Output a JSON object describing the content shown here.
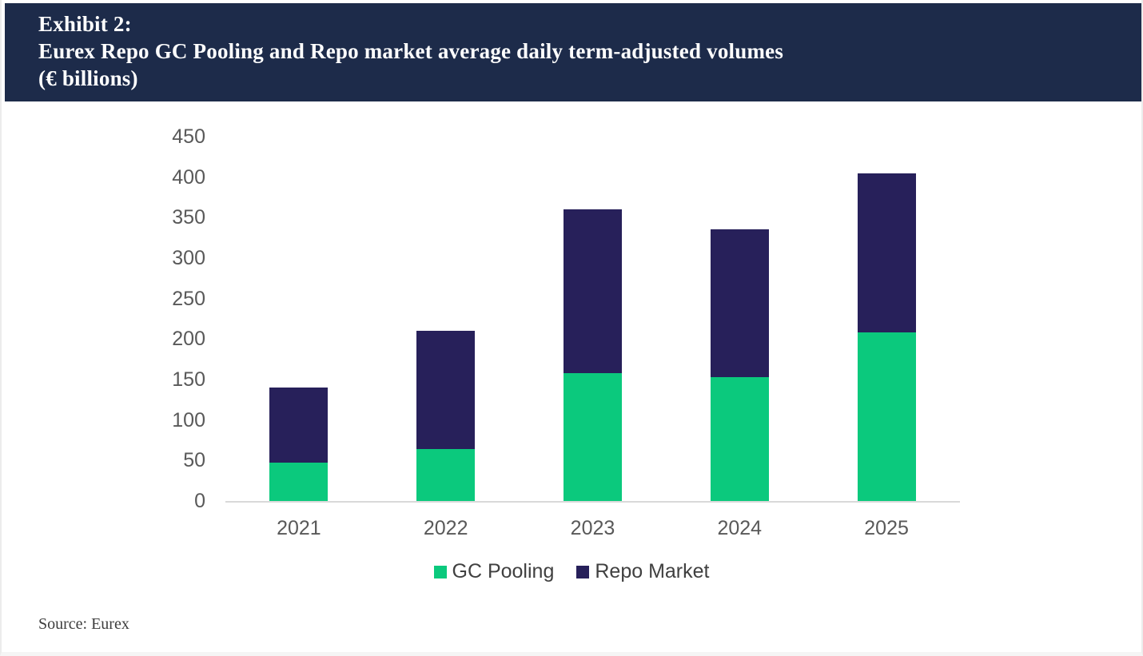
{
  "page": {
    "header": {
      "exhibit_label": "Exhibit 2:",
      "title": "Eurex Repo GC Pooling and Repo market average daily term-adjusted volumes",
      "units": "(€ billions)"
    },
    "source": "Source: Eurex"
  },
  "colors": {
    "header_bg": "#1d2b4a",
    "gc_pooling_green": "#0bc97d",
    "repo_market_navy": "#27205a",
    "axis_line": "#d9d9d9",
    "tick_text": "#595959",
    "legend_text": "#404040"
  },
  "chart_data": {
    "type": "bar",
    "stacked": true,
    "title": "Eurex Repo GC Pooling and Repo market average daily term-adjusted volumes (€ billions)",
    "categories": [
      "2021",
      "2022",
      "2023",
      "2024",
      "2025"
    ],
    "series": [
      {
        "name": "GC Pooling",
        "color": "#0bc97d",
        "values": [
          47,
          64,
          158,
          153,
          208
        ]
      },
      {
        "name": "Repo Market",
        "color": "#27205a",
        "values": [
          93,
          146,
          202,
          183,
          197
        ]
      }
    ],
    "stack_totals": [
      140,
      210,
      360,
      336,
      405
    ],
    "xlabel": "",
    "ylabel": "",
    "ylim": [
      0,
      450
    ],
    "yticks": [
      0,
      50,
      100,
      150,
      200,
      250,
      300,
      350,
      400,
      450
    ],
    "grid": false,
    "legend_position": "bottom"
  }
}
